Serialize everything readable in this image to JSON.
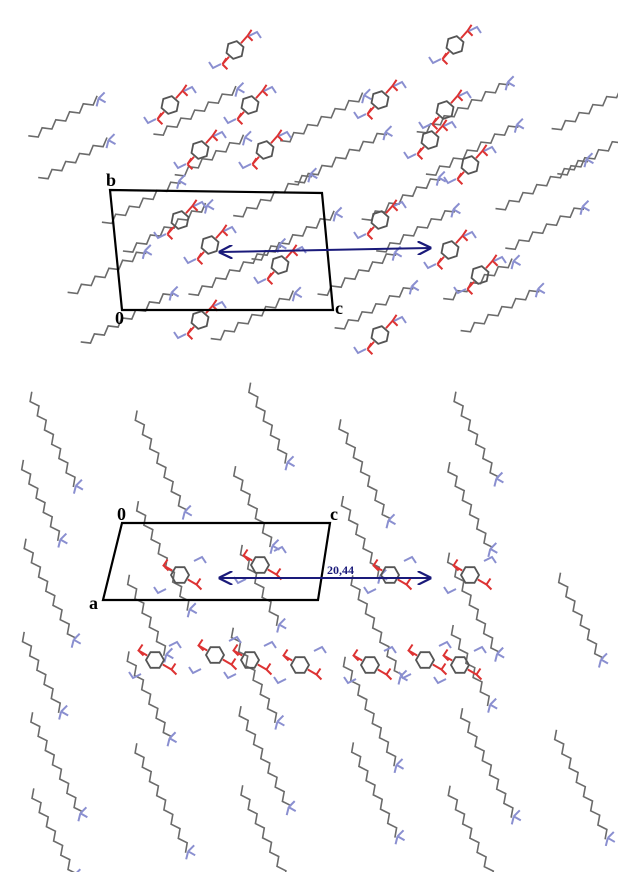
{
  "top_panel": {
    "labels": {
      "b": "b",
      "origin": "0",
      "c": "c"
    }
  },
  "bottom_panel": {
    "labels": {
      "origin": "0",
      "c": "c",
      "a": "a"
    },
    "distance": "20,44"
  }
}
